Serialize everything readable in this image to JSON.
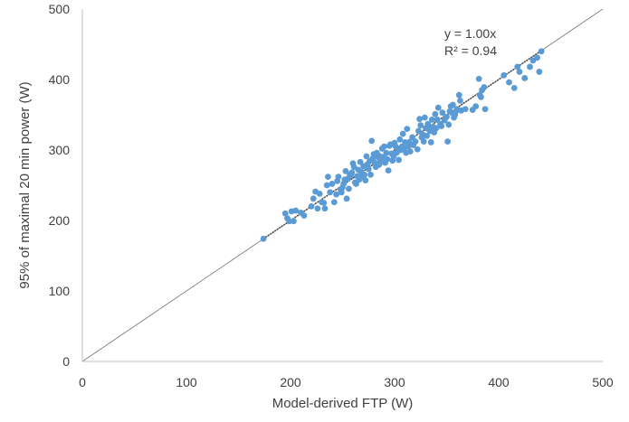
{
  "chart_data": {
    "type": "scatter",
    "title": "",
    "xlabel": "Model-derived FTP (W)",
    "ylabel": "95% of maximal 20 min power (W)",
    "xlim": [
      0,
      500
    ],
    "ylim": [
      0,
      500
    ],
    "x_ticks": [
      "0",
      "100",
      "200",
      "300",
      "400",
      "500"
    ],
    "y_ticks": [
      "0",
      "100",
      "200",
      "300",
      "400",
      "500"
    ],
    "grid": false,
    "legend": "none",
    "marker_color": "#5b9bd5",
    "identity_line": {
      "from": [
        0,
        0
      ],
      "to": [
        500,
        500
      ],
      "color": "#7f7f7f"
    },
    "trendline": {
      "slope": 1.0,
      "x_range": [
        174,
        440
      ],
      "style": "dotted",
      "color": "#404040"
    },
    "annotations": {
      "equation": "y = 1.00x",
      "r_squared": "R² = 0.94"
    },
    "series": [
      {
        "values": [
          [
            174,
            174
          ],
          [
            195,
            210
          ],
          [
            197,
            203
          ],
          [
            199,
            199
          ],
          [
            201,
            213
          ],
          [
            203,
            199
          ],
          [
            205,
            214
          ],
          [
            210,
            211
          ],
          [
            213,
            207
          ],
          [
            220,
            220
          ],
          [
            222,
            231
          ],
          [
            224,
            241
          ],
          [
            226,
            217
          ],
          [
            228,
            238
          ],
          [
            230,
            226
          ],
          [
            232,
            225
          ],
          [
            233,
            217
          ],
          [
            235,
            250
          ],
          [
            236,
            262
          ],
          [
            238,
            240
          ],
          [
            240,
            252
          ],
          [
            242,
            226
          ],
          [
            244,
            237
          ],
          [
            245,
            256
          ],
          [
            246,
            262
          ],
          [
            248,
            244
          ],
          [
            249,
            240
          ],
          [
            250,
            247
          ],
          [
            251,
            252
          ],
          [
            252,
            258
          ],
          [
            253,
            270
          ],
          [
            254,
            231
          ],
          [
            255,
            259
          ],
          [
            256,
            245
          ],
          [
            257,
            265
          ],
          [
            258,
            264
          ],
          [
            259,
            268
          ],
          [
            260,
            281
          ],
          [
            261,
            276
          ],
          [
            262,
            254
          ],
          [
            263,
            252
          ],
          [
            264,
            263
          ],
          [
            265,
            272
          ],
          [
            266,
            258
          ],
          [
            267,
            283
          ],
          [
            268,
            269
          ],
          [
            269,
            262
          ],
          [
            270,
            277
          ],
          [
            271,
            265
          ],
          [
            272,
            257
          ],
          [
            273,
            291
          ],
          [
            274,
            280
          ],
          [
            275,
            273
          ],
          [
            276,
            284
          ],
          [
            277,
            265
          ],
          [
            278,
            313
          ],
          [
            279,
            288
          ],
          [
            280,
            294
          ],
          [
            281,
            282
          ],
          [
            282,
            276
          ],
          [
            283,
            296
          ],
          [
            284,
            290
          ],
          [
            285,
            279
          ],
          [
            286,
            291
          ],
          [
            287,
            283
          ],
          [
            288,
            302
          ],
          [
            289,
            290
          ],
          [
            290,
            305
          ],
          [
            291,
            282
          ],
          [
            292,
            296
          ],
          [
            293,
            287
          ],
          [
            294,
            271
          ],
          [
            295,
            306
          ],
          [
            296,
            308
          ],
          [
            297,
            295
          ],
          [
            298,
            285
          ],
          [
            299,
            291
          ],
          [
            300,
            310
          ],
          [
            301,
            305
          ],
          [
            302,
            296
          ],
          [
            303,
            299
          ],
          [
            304,
            286
          ],
          [
            305,
            315
          ],
          [
            306,
            300
          ],
          [
            307,
            305
          ],
          [
            308,
            323
          ],
          [
            309,
            302
          ],
          [
            310,
            311
          ],
          [
            311,
            296
          ],
          [
            312,
            330
          ],
          [
            313,
            305
          ],
          [
            314,
            311
          ],
          [
            315,
            298
          ],
          [
            317,
            318
          ],
          [
            318,
            307
          ],
          [
            320,
            312
          ],
          [
            322,
            301
          ],
          [
            323,
            327
          ],
          [
            324,
            344
          ],
          [
            325,
            335
          ],
          [
            326,
            318
          ],
          [
            327,
            322
          ],
          [
            328,
            312
          ],
          [
            329,
            346
          ],
          [
            330,
            331
          ],
          [
            331,
            320
          ],
          [
            332,
            337
          ],
          [
            333,
            329
          ],
          [
            334,
            327
          ],
          [
            335,
            311
          ],
          [
            336,
            343
          ],
          [
            337,
            333
          ],
          [
            338,
            325
          ],
          [
            339,
            351
          ],
          [
            340,
            331
          ],
          [
            341,
            343
          ],
          [
            342,
            360
          ],
          [
            344,
            337
          ],
          [
            345,
            334
          ],
          [
            346,
            353
          ],
          [
            348,
            342
          ],
          [
            350,
            347
          ],
          [
            351,
            312
          ],
          [
            352,
            336
          ],
          [
            353,
            355
          ],
          [
            354,
            362
          ],
          [
            355,
            353
          ],
          [
            356,
            364
          ],
          [
            357,
            346
          ],
          [
            358,
            350
          ],
          [
            359,
            355
          ],
          [
            360,
            358
          ],
          [
            362,
            378
          ],
          [
            363,
            370
          ],
          [
            364,
            356
          ],
          [
            368,
            358
          ],
          [
            375,
            357
          ],
          [
            378,
            362
          ],
          [
            381,
            401
          ],
          [
            382,
            378
          ],
          [
            383,
            375
          ],
          [
            384,
            385
          ],
          [
            386,
            389
          ],
          [
            387,
            358
          ],
          [
            405,
            406
          ],
          [
            410,
            396
          ],
          [
            415,
            388
          ],
          [
            418,
            418
          ],
          [
            420,
            411
          ],
          [
            425,
            402
          ],
          [
            430,
            418
          ],
          [
            433,
            427
          ],
          [
            437,
            431
          ],
          [
            439,
            411
          ],
          [
            441,
            440
          ]
        ]
      }
    ]
  }
}
